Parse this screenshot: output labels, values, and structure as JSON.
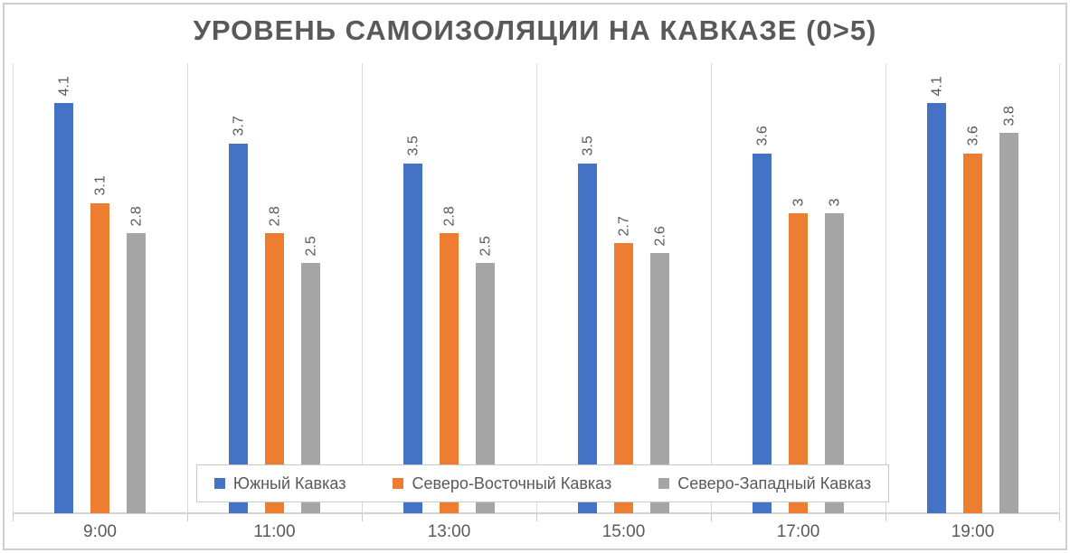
{
  "title": "УРОВЕНЬ САМОИЗОЛЯЦИИ НА КАВКАЗЕ (0>5)",
  "chart_data": {
    "type": "bar",
    "title": "УРОВЕНЬ САМОИЗОЛЯЦИИ НА КАВКАЗЕ (0>5)",
    "categories": [
      "9:00",
      "11:00",
      "13:00",
      "15:00",
      "17:00",
      "19:00"
    ],
    "series": [
      {
        "name": "Южный Кавказ",
        "color": "#4472C4",
        "values": [
          4.1,
          3.7,
          3.5,
          3.5,
          3.6,
          4.1
        ]
      },
      {
        "name": "Северо-Восточный Кавказ",
        "color": "#ED7D31",
        "values": [
          3.1,
          2.8,
          2.8,
          2.7,
          3,
          3.6
        ]
      },
      {
        "name": "Северо-Западный Кавказ",
        "color": "#A5A5A5",
        "values": [
          2.8,
          2.5,
          2.5,
          2.6,
          3,
          3.8
        ]
      }
    ],
    "xlabel": "",
    "ylabel": "",
    "ylim": [
      0,
      4.5
    ],
    "y_axis_visible": false,
    "grid": "vertical category separators",
    "data_labels": "values above bars, rotated 90 degrees",
    "legend_position": "bottom overlay box"
  },
  "colors": {
    "text": "#595959",
    "gridline": "#d9d9d9",
    "axis_line": "#d3d3d3",
    "outer_border": "#cfcfcf",
    "legend_border": "#c9c9c9",
    "background": "#ffffff"
  }
}
